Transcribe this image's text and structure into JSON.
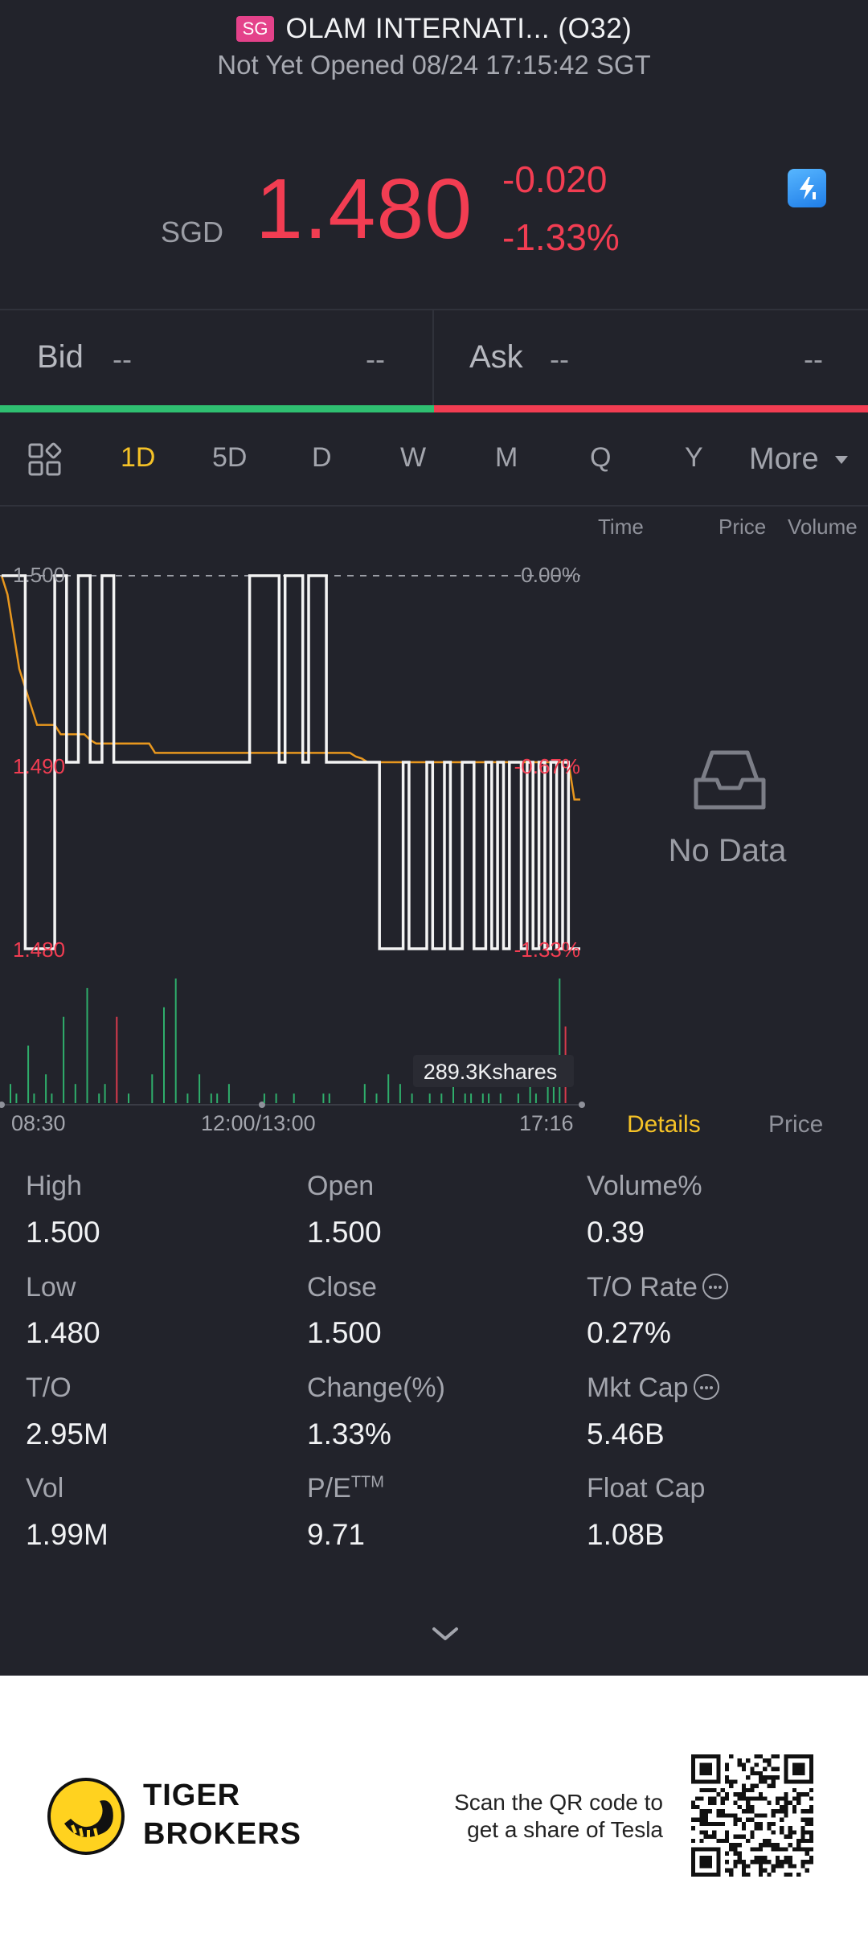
{
  "header": {
    "market_badge": "SG",
    "title": "OLAM INTERNATI... (O32)",
    "status": "Not Yet Opened 08/24 17:15:42 SGT"
  },
  "quote": {
    "currency": "SGD",
    "last_price": "1.480",
    "change_abs": "-0.020",
    "change_pct": "-1.33%",
    "color_down": "#f23d52",
    "color_up": "#2fbf71"
  },
  "bid_ask": {
    "bid_label": "Bid",
    "bid_price": "--",
    "bid_size": "--",
    "ask_label": "Ask",
    "ask_price": "--",
    "ask_size": "--"
  },
  "tabs": {
    "items": [
      "1D",
      "5D",
      "D",
      "W",
      "M",
      "Q",
      "Y"
    ],
    "more": "More",
    "active": "1D"
  },
  "right_panel": {
    "col_time": "Time",
    "col_price": "Price",
    "col_volume": "Volume",
    "no_data": "No Data",
    "tab_details": "Details",
    "tab_price": "Price"
  },
  "chart_data": {
    "type": "line",
    "ylim": [
      1.48,
      1.5
    ],
    "y_ticks_left": [
      "1.500",
      "1.490",
      "1.480"
    ],
    "y_ticks_right": [
      "0.00%",
      "-0.67%",
      "-1.33%"
    ],
    "x_ticks": [
      "08:30",
      "12:00/13:00",
      "17:16"
    ],
    "volume_label": "289.3Kshares",
    "series": [
      {
        "values": [
          1.5,
          1.5,
          1.5,
          1.5,
          1.48,
          1.48,
          1.48,
          1.48,
          1.48,
          1.5,
          1.5,
          1.49,
          1.49,
          1.5,
          1.5,
          1.49,
          1.49,
          1.5,
          1.5,
          1.49,
          1.49,
          1.49,
          1.49,
          1.49,
          1.49,
          1.49,
          1.49,
          1.49,
          1.49,
          1.49,
          1.49,
          1.49,
          1.49,
          1.49,
          1.49,
          1.49,
          1.49,
          1.49,
          1.49,
          1.49,
          1.49,
          1.49,
          1.5,
          1.5,
          1.5,
          1.5,
          1.5,
          1.49,
          1.5,
          1.5,
          1.5,
          1.49,
          1.5,
          1.5,
          1.5,
          1.49,
          1.49,
          1.49,
          1.49,
          1.49,
          1.49,
          1.49,
          1.49,
          1.49,
          1.48,
          1.48,
          1.48,
          1.48,
          1.49,
          1.48,
          1.48,
          1.48,
          1.49,
          1.48,
          1.48,
          1.49,
          1.48,
          1.48,
          1.49,
          1.49,
          1.48,
          1.48,
          1.49,
          1.48,
          1.49,
          1.48,
          1.49,
          1.49,
          1.48,
          1.49,
          1.48,
          1.49,
          1.48,
          1.49,
          1.48,
          1.49,
          1.48,
          1.48
        ]
      },
      {
        "values": [
          1.5,
          1.499,
          1.497,
          1.495,
          1.494,
          1.493,
          1.492,
          1.492,
          1.492,
          1.492,
          1.4915,
          1.4915,
          1.4915,
          1.4915,
          1.4915,
          1.4912,
          1.491,
          1.491,
          1.491,
          1.491,
          1.491,
          1.491,
          1.491,
          1.491,
          1.491,
          1.491,
          1.4905,
          1.4905,
          1.4905,
          1.4905,
          1.4905,
          1.4905,
          1.4905,
          1.4905,
          1.4905,
          1.4905,
          1.4905,
          1.4905,
          1.4905,
          1.4905,
          1.4905,
          1.4905,
          1.4905,
          1.4905,
          1.4905,
          1.4905,
          1.4905,
          1.4905,
          1.4905,
          1.4905,
          1.4905,
          1.4905,
          1.4905,
          1.4905,
          1.4905,
          1.4905,
          1.4905,
          1.4905,
          1.4905,
          1.4905,
          1.4903,
          1.4902,
          1.49,
          1.49,
          1.49,
          1.49,
          1.49,
          1.49,
          1.49,
          1.49,
          1.49,
          1.49,
          1.49,
          1.49,
          1.49,
          1.49,
          1.49,
          1.49,
          1.49,
          1.49,
          1.49,
          1.49,
          1.49,
          1.49,
          1.49,
          1.49,
          1.49,
          1.49,
          1.49,
          1.49,
          1.49,
          1.49,
          1.49,
          1.49,
          1.49,
          1.49,
          1.49,
          1.488,
          1.488
        ]
      }
    ],
    "volume_bars": [
      0,
      2,
      1,
      0,
      6,
      1,
      0,
      3,
      1,
      0,
      9,
      0,
      2,
      0,
      12,
      0,
      1,
      2,
      0,
      9,
      0,
      1,
      0,
      0,
      0,
      3,
      0,
      10,
      0,
      13,
      0,
      1,
      0,
      3,
      0,
      1,
      1,
      0,
      2,
      0,
      0,
      0,
      0,
      0,
      1,
      0,
      1,
      0,
      0,
      1,
      0,
      0,
      0,
      0,
      1,
      1,
      0,
      0,
      0,
      0,
      0,
      2,
      0,
      1,
      0,
      3,
      0,
      2,
      0,
      1,
      0,
      0,
      1,
      0,
      1,
      0,
      2,
      0,
      1,
      1,
      0,
      1,
      1,
      0,
      1,
      0,
      0,
      1,
      0,
      2,
      1,
      0,
      5,
      3,
      13,
      8,
      0,
      0
    ],
    "volume_colors_red_idx": [
      19,
      95
    ],
    "grid": true
  },
  "stats": {
    "high_label": "High",
    "high": "1.500",
    "open_label": "Open",
    "open": "1.500",
    "volpct_label": "Volume%",
    "volpct": "0.39",
    "low_label": "Low",
    "low": "1.480",
    "close_label": "Close",
    "close": "1.500",
    "to_rate_label": "T/O Rate",
    "to_rate": "0.27%",
    "to_label": "T/O",
    "to": "2.95M",
    "change_label": "Change(%)",
    "change": "1.33%",
    "mktcap_label": "Mkt Cap",
    "mktcap": "5.46B",
    "vol_label": "Vol",
    "vol": "1.99M",
    "pe_label": "P/E",
    "pe_sup": "TTM",
    "pe": "9.71",
    "floatcap_label": "Float Cap",
    "floatcap": "1.08B"
  },
  "footer": {
    "brand_line1": "TIGER",
    "brand_line2": "BROKERS",
    "promo_line1": "Scan the QR code to",
    "promo_line2": "get a share of Tesla"
  }
}
